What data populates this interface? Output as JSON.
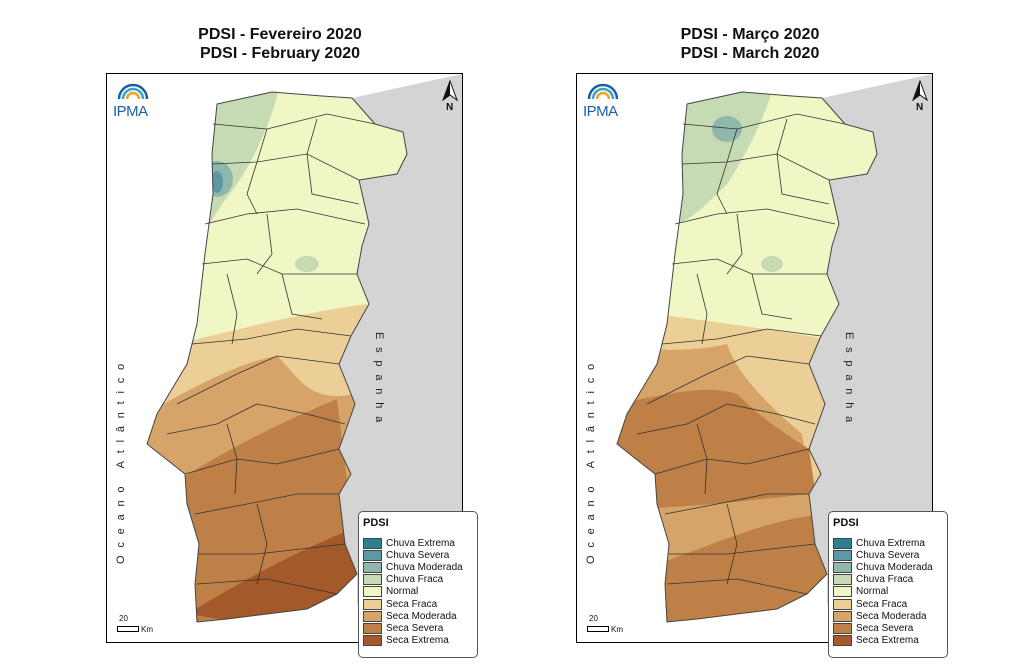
{
  "panels": [
    {
      "title_pt": "PDSI - Fevereiro 2020",
      "title_en": "PDSI - February 2020"
    },
    {
      "title_pt": "PDSI - Março 2020",
      "title_en": "PDSI - March 2020"
    }
  ],
  "map": {
    "logo_text": "IPMA",
    "north_label": "N",
    "ocean_label": "Oceano Atlântico",
    "land_label": "Espanha",
    "scale_value": "20",
    "scale_unit": "Km"
  },
  "legend": {
    "title": "PDSI",
    "classes": [
      {
        "label": "Chuva Extrema",
        "color": "#2e7f8f"
      },
      {
        "label": "Chuva Severa",
        "color": "#5b9aa4"
      },
      {
        "label": "Chuva Moderada",
        "color": "#8fb8ad"
      },
      {
        "label": "Chuva Fraca",
        "color": "#c6dbb4"
      },
      {
        "label": "Normal",
        "color": "#f0f7c5"
      },
      {
        "label": "Seca Fraca",
        "color": "#ebcf97"
      },
      {
        "label": "Seca Moderada",
        "color": "#d6a468"
      },
      {
        "label": "Seca Severa",
        "color": "#bf8048"
      },
      {
        "label": "Seca Extrema",
        "color": "#a4592a"
      }
    ]
  }
}
